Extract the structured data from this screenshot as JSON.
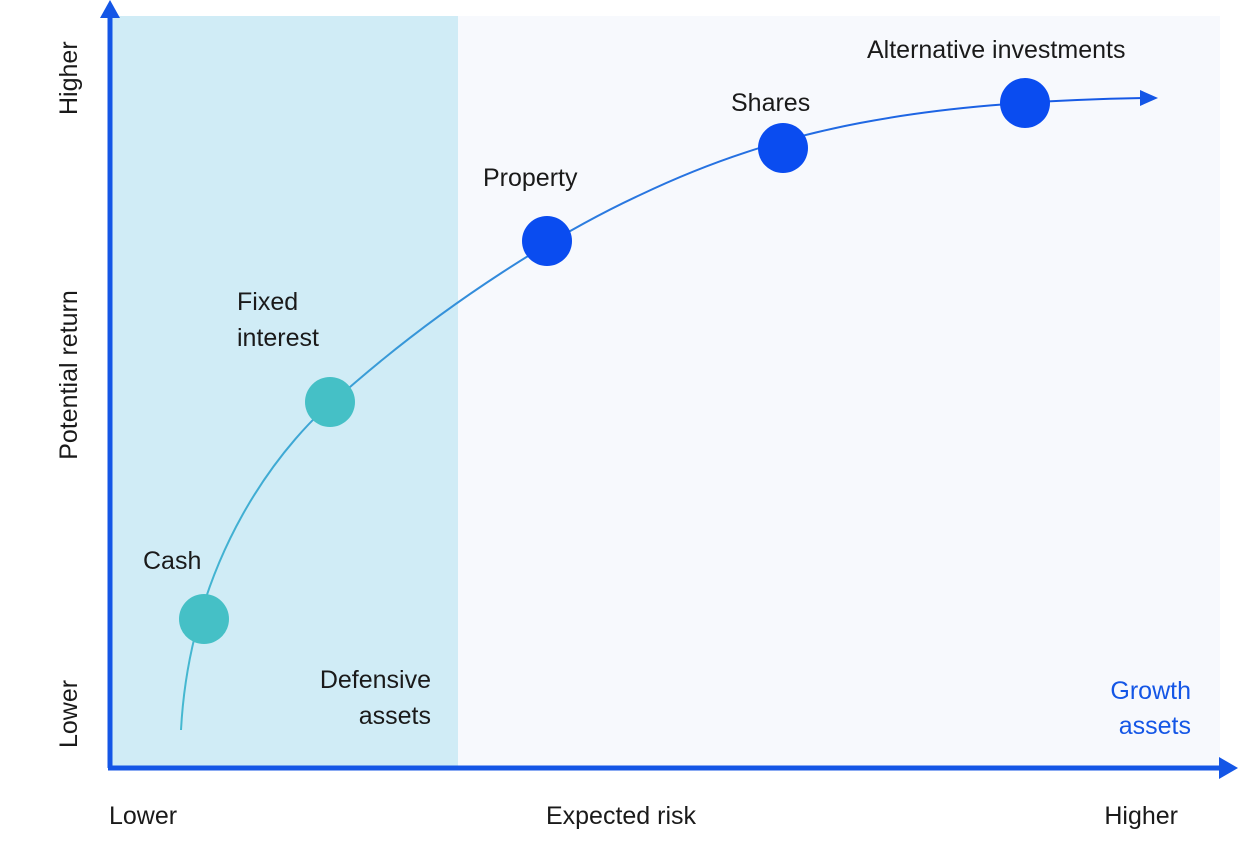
{
  "axes": {
    "x_label": "Expected risk",
    "x_low": "Lower",
    "x_high": "Higher",
    "y_label": "Potential return",
    "y_low": "Lower",
    "y_high": "Higher"
  },
  "zones": {
    "defensive": {
      "line1": "Defensive",
      "line2": "assets"
    },
    "growth": {
      "line1": "Growth",
      "line2": "assets"
    }
  },
  "assets": [
    {
      "id": "cash",
      "line1": "Cash",
      "line2": "",
      "group": "defensive"
    },
    {
      "id": "fixed-interest",
      "line1": "Fixed",
      "line2": "interest",
      "group": "defensive"
    },
    {
      "id": "property",
      "line1": "Property",
      "line2": "",
      "group": "growth"
    },
    {
      "id": "shares",
      "line1": "Shares",
      "line2": "",
      "group": "growth"
    },
    {
      "id": "alternative-investments",
      "line1": "Alternative investments",
      "line2": "",
      "group": "growth"
    }
  ],
  "colors": {
    "defensive_zone": "#d0ecf6",
    "growth_zone": "#f7f9fd",
    "axis": "#1456e6",
    "defensive_dot": "#45c0c6",
    "growth_dot": "#0a4cf0",
    "curve_start": "#45b8d0",
    "curve_end": "#1456e6",
    "growth_text": "#1456e6",
    "text": "#1a1a1a"
  }
}
